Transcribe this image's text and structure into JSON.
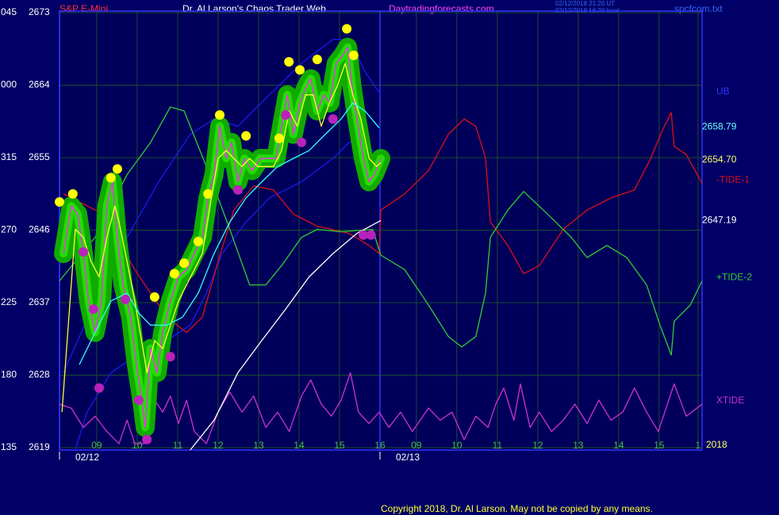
{
  "chart_data": {
    "type": "line",
    "symbol": "S&P E-Mini",
    "title": "Dr. Al Larson's Chaos Trader Web",
    "site": "Daytradingforecasts.com",
    "timestamps": [
      "02/12/2018 21:20 UT",
      "02/12/2018 16:20 local"
    ],
    "file": "spcfcom.txt",
    "copyright": "Copyright 2018, Dr. Al Larson. May not be copied by any means.",
    "year_label": "2018",
    "grid": true,
    "xlim": [
      0.08,
      15.96
    ],
    "ylim": [
      2618.7,
      2673.2
    ],
    "yticks": [
      2673,
      2664,
      2655,
      2646,
      2637,
      2628,
      2619
    ],
    "left_labels": [
      "045",
      "000",
      "315",
      "270",
      "225",
      "180",
      "135"
    ],
    "xticks": [
      {
        "value": 1,
        "label": "09"
      },
      {
        "value": 2,
        "label": "10"
      },
      {
        "value": 3,
        "label": "11"
      },
      {
        "value": 4,
        "label": "12"
      },
      {
        "value": 5,
        "label": "13"
      },
      {
        "value": 6,
        "label": "14"
      },
      {
        "value": 7,
        "label": "15"
      },
      {
        "value": 8,
        "label": "16"
      },
      {
        "value": 8.9,
        "label": "09"
      },
      {
        "value": 9.9,
        "label": "10"
      },
      {
        "value": 10.9,
        "label": "11"
      },
      {
        "value": 11.9,
        "label": "12"
      },
      {
        "value": 12.9,
        "label": "13"
      },
      {
        "value": 13.9,
        "label": "14"
      },
      {
        "value": 14.9,
        "label": "15"
      },
      {
        "value": 15.86,
        "label": "1"
      }
    ],
    "date_labels": [
      {
        "value": 0.08,
        "label": "02/12"
      },
      {
        "value": 8.0,
        "label": "02/13"
      }
    ],
    "right_labels": [
      {
        "value": 2658.79,
        "label": "2658.79",
        "color": "#66ffff"
      },
      {
        "value": 2654.7,
        "label": "2654.70",
        "color": "#ffff66"
      },
      {
        "value": 2647.19,
        "label": "2647.19",
        "color": "#ffffff"
      }
    ],
    "series": [
      {
        "name": "UB",
        "color": "#1a1aee",
        "x": [
          0.18,
          0.96,
          1.75,
          2.53,
          3.31,
          3.9,
          4.49,
          5.27,
          6.06,
          6.84,
          7.24,
          7.63,
          8.02
        ],
        "values": [
          2628.3,
          2637.2,
          2645.1,
          2652.0,
          2657.9,
          2659.8,
          2658.9,
          2662.8,
          2666.7,
          2669.7,
          2669.7,
          2665.7,
          2662.8
        ]
      },
      {
        "color": "#1a1aee",
        "x": [
          0.47,
          0.76,
          1.35,
          1.94,
          2.73,
          3.31,
          3.71,
          4.1,
          4.69,
          5.27,
          6.06,
          6.84,
          7.24,
          7.63,
          7.98
        ],
        "values": [
          2618.7,
          2623.4,
          2628.3,
          2630.3,
          2632.3,
          2634.2,
          2638.2,
          2643.1,
          2647.0,
          2650.0,
          2652.0,
          2654.9,
          2656.9,
          2656.9,
          2654.9
        ]
      },
      {
        "name": "-TIDE-1",
        "color": "#dd1111",
        "x": [
          0.18,
          1.16,
          1.94,
          2.73,
          3.22,
          3.61,
          4.0,
          4.39,
          4.88,
          5.37,
          5.86,
          6.45,
          7.24,
          7.73,
          7.98,
          8.02,
          8.61,
          9.2,
          9.69,
          10.08,
          10.37,
          10.61,
          10.73,
          11.16,
          11.55,
          11.94,
          12.53,
          13.12,
          13.71,
          14.29,
          14.69,
          14.98,
          15.2,
          15.27,
          15.57,
          15.96
        ],
        "values": [
          2650.5,
          2648.0,
          2641.1,
          2635.2,
          2633.3,
          2635.2,
          2642.1,
          2648.5,
          2651.5,
          2651.0,
          2648.0,
          2646.5,
          2645.6,
          2644.1,
          2643.1,
          2648.5,
          2650.5,
          2653.4,
          2657.9,
          2659.8,
          2658.9,
          2654.9,
          2647.0,
          2644.1,
          2640.6,
          2641.6,
          2646.1,
          2648.5,
          2650.0,
          2651.0,
          2654.9,
          2658.4,
          2660.6,
          2656.4,
          2655.4,
          2651.8
        ]
      },
      {
        "name": "+TIDE-2",
        "color": "#33cc33",
        "x": [
          0.08,
          0.96,
          1.75,
          2.33,
          2.82,
          3.16,
          3.71,
          4.29,
          4.78,
          5.18,
          5.57,
          6.06,
          6.45,
          7.04,
          7.82,
          8.02,
          8.61,
          9.2,
          9.69,
          10.02,
          10.37,
          10.61,
          10.73,
          11.16,
          11.55,
          12.14,
          12.73,
          13.12,
          13.61,
          14.1,
          14.59,
          14.92,
          15.2,
          15.27,
          15.67,
          15.96
        ],
        "values": [
          2639.7,
          2645.1,
          2652.9,
          2656.9,
          2661.3,
          2660.8,
          2653.9,
          2646.1,
          2639.2,
          2639.2,
          2641.6,
          2645.1,
          2646.1,
          2645.8,
          2646.1,
          2642.9,
          2641.1,
          2636.7,
          2632.8,
          2631.5,
          2632.8,
          2638.2,
          2645.1,
          2648.5,
          2650.8,
          2648.0,
          2645.1,
          2642.6,
          2644.1,
          2642.6,
          2639.2,
          2634.2,
          2630.5,
          2634.7,
          2636.7,
          2639.7
        ]
      },
      {
        "name": "XTIDE",
        "color": "#cc33cc",
        "x": [
          0.08,
          0.37,
          0.67,
          0.96,
          1.25,
          1.55,
          1.75,
          1.94,
          2.18,
          2.43,
          2.63,
          2.82,
          3.02,
          3.22,
          3.41,
          3.71,
          4.0,
          4.29,
          4.59,
          4.88,
          5.18,
          5.47,
          5.76,
          6.06,
          6.29,
          6.55,
          6.8,
          7.04,
          7.27,
          7.47,
          7.73,
          7.98,
          8.22,
          8.51,
          8.8,
          9.2,
          9.49,
          9.78,
          10.08,
          10.37,
          10.67,
          10.86,
          11.06,
          11.31,
          11.47,
          11.71,
          11.94,
          12.24,
          12.53,
          12.82,
          13.12,
          13.41,
          13.71,
          14.0,
          14.29,
          14.59,
          14.88,
          15.27,
          15.57,
          15.96
        ],
        "values": [
          2624.4,
          2623.9,
          2621.5,
          2622.9,
          2621.0,
          2619.5,
          2622.4,
          2619.5,
          2619.5,
          2624.9,
          2623.4,
          2625.4,
          2622.0,
          2624.9,
          2621.0,
          2619.5,
          2623.4,
          2625.9,
          2623.4,
          2625.4,
          2621.5,
          2623.4,
          2621.0,
          2625.4,
          2627.4,
          2624.4,
          2622.9,
          2624.9,
          2628.3,
          2623.4,
          2622.0,
          2623.4,
          2621.5,
          2623.4,
          2621.0,
          2623.9,
          2622.4,
          2623.4,
          2620.0,
          2622.9,
          2621.5,
          2624.4,
          2626.4,
          2622.4,
          2626.9,
          2621.5,
          2623.4,
          2621.0,
          2622.4,
          2624.4,
          2622.0,
          2624.9,
          2622.4,
          2623.4,
          2626.4,
          2623.4,
          2621.0,
          2626.9,
          2622.9,
          2624.4
        ]
      },
      {
        "color": "#ee33ee",
        "glow": "#11aa00",
        "x": [
          0.18,
          0.37,
          0.53,
          0.67,
          0.8,
          0.96,
          1.12,
          1.25,
          1.39,
          1.51,
          1.65,
          1.84,
          1.98,
          2.1,
          2.2,
          2.33,
          2.49,
          2.63,
          2.82,
          3.02,
          3.22,
          3.41,
          3.61,
          3.75,
          3.9,
          4.04,
          4.2,
          4.33,
          4.49,
          4.65,
          4.84,
          5.04,
          5.43,
          5.57,
          5.71,
          5.86,
          6.02,
          6.18,
          6.29,
          6.45,
          6.61,
          6.76,
          6.92,
          7.08,
          7.2,
          7.31,
          7.43,
          7.59,
          7.73,
          7.86,
          8.02
        ],
        "values": [
          2643.1,
          2649.0,
          2648.0,
          2643.1,
          2637.2,
          2633.3,
          2637.2,
          2649.0,
          2652.0,
          2645.1,
          2639.2,
          2635.2,
          2629.3,
          2625.4,
          2621.5,
          2631.3,
          2628.3,
          2633.3,
          2637.2,
          2640.2,
          2641.1,
          2643.1,
          2645.1,
          2650.0,
          2652.9,
          2658.9,
          2654.9,
          2656.9,
          2652.0,
          2654.9,
          2653.4,
          2654.9,
          2654.9,
          2658.9,
          2662.8,
          2657.9,
          2661.8,
          2663.8,
          2664.8,
          2660.8,
          2662.8,
          2661.8,
          2666.7,
          2667.7,
          2668.7,
          2663.8,
          2659.8,
          2654.9,
          2652.0,
          2652.9,
          2654.9
        ]
      },
      {
        "color": "#ffff33",
        "x": [
          0.14,
          0.47,
          0.67,
          0.86,
          1.06,
          1.25,
          1.45,
          1.55,
          1.75,
          1.94,
          2.14,
          2.24,
          2.43,
          2.63,
          2.82,
          3.02,
          3.22,
          3.41,
          3.61,
          3.8,
          4.0,
          4.2,
          4.39,
          4.59,
          4.78,
          4.98,
          5.37,
          5.57,
          5.76,
          5.96,
          6.16,
          6.35,
          6.55,
          6.75,
          6.94,
          7.14,
          7.33,
          7.53,
          7.73,
          7.92,
          8.02
        ],
        "values": [
          2623.4,
          2646.1,
          2645.1,
          2642.1,
          2640.2,
          2645.1,
          2649.0,
          2647.0,
          2642.1,
          2637.2,
          2631.3,
          2628.3,
          2632.3,
          2631.3,
          2634.2,
          2637.2,
          2639.2,
          2641.1,
          2643.1,
          2649.0,
          2654.9,
          2655.9,
          2654.9,
          2653.9,
          2654.9,
          2653.9,
          2653.9,
          2655.9,
          2660.8,
          2658.9,
          2662.8,
          2662.8,
          2658.9,
          2661.8,
          2663.8,
          2666.7,
          2662.8,
          2659.8,
          2654.9,
          2653.9,
          2654.4
        ]
      },
      {
        "color": "#33ffff",
        "x": [
          0.57,
          0.96,
          1.35,
          1.75,
          2.04,
          2.33,
          2.73,
          3.12,
          3.51,
          3.9,
          4.29,
          4.69,
          5.08,
          5.47,
          5.86,
          6.25,
          6.65,
          7.04,
          7.33,
          7.63,
          7.98
        ],
        "values": [
          2629.3,
          2633.3,
          2637.2,
          2638.2,
          2635.7,
          2634.2,
          2634.2,
          2635.2,
          2638.2,
          2643.1,
          2647.0,
          2650.0,
          2652.0,
          2653.9,
          2654.9,
          2655.9,
          2657.9,
          2659.8,
          2661.8,
          2660.8,
          2658.7
        ]
      },
      {
        "color": "#ffffff",
        "x": [
          3.31,
          3.9,
          4.49,
          5.08,
          5.67,
          6.25,
          6.84,
          7.43,
          8.02
        ],
        "values": [
          2618.7,
          2622.4,
          2628.3,
          2632.3,
          2636.2,
          2640.2,
          2643.1,
          2645.6,
          2647.2
        ]
      },
      {
        "color": "#ffff00",
        "marker": "dot",
        "x": [
          0.08,
          0.41,
          1.35,
          1.51,
          2.43,
          2.92,
          3.16,
          3.51,
          3.75,
          4.04,
          4.69,
          5.51,
          5.75,
          6.02,
          6.45,
          7.18,
          7.35
        ],
        "values": [
          2649.5,
          2650.5,
          2652.5,
          2653.6,
          2637.7,
          2640.6,
          2641.9,
          2644.6,
          2650.5,
          2660.3,
          2657.7,
          2657.4,
          2666.9,
          2665.9,
          2667.2,
          2671.0,
          2667.7
        ]
      },
      {
        "color": "#bb22bb",
        "marker": "dot",
        "x": [
          0.67,
          0.92,
          1.06,
          1.71,
          2.04,
          2.24,
          2.82,
          4.49,
          5.67,
          6.06,
          6.84,
          7.59,
          7.78
        ],
        "values": [
          2643.3,
          2636.2,
          2626.4,
          2637.4,
          2624.9,
          2620.0,
          2630.3,
          2651.0,
          2660.3,
          2656.9,
          2659.8,
          2645.4,
          2645.4
        ]
      }
    ]
  }
}
